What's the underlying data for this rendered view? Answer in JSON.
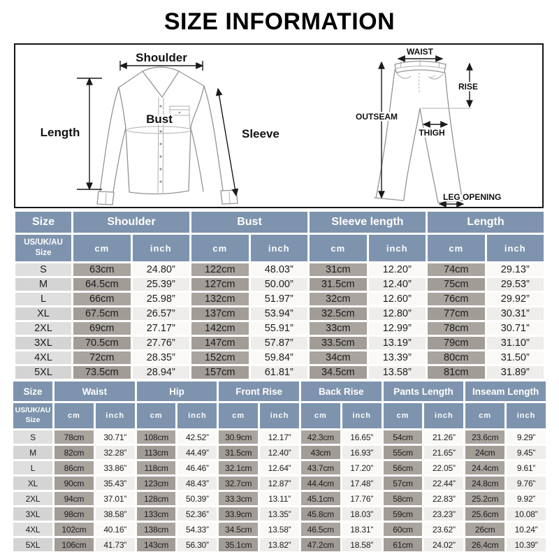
{
  "title": "SIZE INFORMATION",
  "colors": {
    "header_bg": "#7E93AD",
    "size_cell_bg": "#DFDFDF",
    "cm_cell_bg": "#A9A49E",
    "inch_cell_bg": "#FAF9F7",
    "title_color": "#000000"
  },
  "diagram": {
    "shirt": {
      "shoulder": "Shoulder",
      "length": "Length",
      "bust": "Bust",
      "sleeve": "Sleeve"
    },
    "pants": {
      "waist": "WAIST",
      "rise": "RISE",
      "outseam": "OUTSEAM",
      "thigh": "THIGH",
      "leg_opening": "LEG OPENING"
    }
  },
  "shirt_table": {
    "groups": [
      {
        "label": "Size",
        "span": 1
      },
      {
        "label": "Shoulder",
        "span": 2
      },
      {
        "label": "Bust",
        "span": 2
      },
      {
        "label": "Sleeve length",
        "span": 2
      },
      {
        "label": "Length",
        "span": 2
      }
    ],
    "corner": "US/UK/AU\nSize",
    "units": [
      "cm",
      "inch",
      "cm",
      "inch",
      "cm",
      "inch",
      "cm",
      "inch"
    ],
    "rows": [
      {
        "size": "S",
        "cells": [
          "63cm",
          "24.80”",
          "122cm",
          "48.03”",
          "31cm",
          "12.20”",
          "74cm",
          "29.13”"
        ]
      },
      {
        "size": "M",
        "cells": [
          "64.5cm",
          "25.39”",
          "127cm",
          "50.00”",
          "31.5cm",
          "12.40”",
          "75cm",
          "29.53”"
        ]
      },
      {
        "size": "L",
        "cells": [
          "66cm",
          "25.98”",
          "132cm",
          "51.97”",
          "32cm",
          "12.60”",
          "76cm",
          "29.92”"
        ]
      },
      {
        "size": "XL",
        "cells": [
          "67.5cm",
          "26.57”",
          "137cm",
          "53.94”",
          "32.5cm",
          "12.80”",
          "77cm",
          "30.31”"
        ]
      },
      {
        "size": "2XL",
        "cells": [
          "69cm",
          "27.17”",
          "142cm",
          "55.91”",
          "33cm",
          "12.99”",
          "78cm",
          "30.71”"
        ]
      },
      {
        "size": "3XL",
        "cells": [
          "70.5cm",
          "27.76”",
          "147cm",
          "57.87”",
          "33.5cm",
          "13.19”",
          "79cm",
          "31.10”"
        ]
      },
      {
        "size": "4XL",
        "cells": [
          "72cm",
          "28.35”",
          "152cm",
          "59.84”",
          "34cm",
          "13.39”",
          "80cm",
          "31.50”"
        ]
      },
      {
        "size": "5XL",
        "cells": [
          "73.5cm",
          "28.94”",
          "157cm",
          "61.81”",
          "34.5cm",
          "13.58”",
          "81cm",
          "31.89”"
        ]
      }
    ]
  },
  "pants_table": {
    "groups": [
      {
        "label": "Size",
        "span": 1
      },
      {
        "label": "Waist",
        "span": 2
      },
      {
        "label": "Hip",
        "span": 2
      },
      {
        "label": "Front Rise",
        "span": 2
      },
      {
        "label": "Back Rise",
        "span": 2
      },
      {
        "label": "Pants Length",
        "span": 2
      },
      {
        "label": "Inseam Length",
        "span": 2
      }
    ],
    "corner": "US/UK/AU\nSize",
    "units": [
      "cm",
      "inch",
      "cm",
      "inch",
      "cm",
      "inch",
      "cm",
      "inch",
      "cm",
      "inch",
      "cm",
      "inch"
    ],
    "rows": [
      {
        "size": "S",
        "cells": [
          "78cm",
          "30.71”",
          "108cm",
          "42.52”",
          "30.9cm",
          "12.17”",
          "42.3cm",
          "16.65”",
          "54cm",
          "21.26”",
          "23.6cm",
          "9.29”"
        ]
      },
      {
        "size": "M",
        "cells": [
          "82cm",
          "32.28”",
          "113cm",
          "44.49”",
          "31.5cm",
          "12.40”",
          "43cm",
          "16.93”",
          "55cm",
          "21.65”",
          "24cm",
          "9.45”"
        ]
      },
      {
        "size": "L",
        "cells": [
          "86cm",
          "33.86”",
          "118cm",
          "46.46”",
          "32.1cm",
          "12.64”",
          "43.7cm",
          "17.20”",
          "56cm",
          "22.05”",
          "24.4cm",
          "9.61”"
        ]
      },
      {
        "size": "XL",
        "cells": [
          "90cm",
          "35.43”",
          "123cm",
          "48.43”",
          "32.7cm",
          "12.87”",
          "44.4cm",
          "17.48”",
          "57cm",
          "22.44”",
          "24.8cm",
          "9.76”"
        ]
      },
      {
        "size": "2XL",
        "cells": [
          "94cm",
          "37.01”",
          "128cm",
          "50.39”",
          "33.3cm",
          "13.11”",
          "45.1cm",
          "17.76”",
          "58cm",
          "22.83”",
          "25.2cm",
          "9.92”"
        ]
      },
      {
        "size": "3XL",
        "cells": [
          "98cm",
          "38.58”",
          "133cm",
          "52.36”",
          "33.9cm",
          "13.35”",
          "45.8cm",
          "18.03”",
          "59cm",
          "23.23”",
          "25.6cm",
          "10.08”"
        ]
      },
      {
        "size": "4XL",
        "cells": [
          "102cm",
          "40.16”",
          "138cm",
          "54.33”",
          "34.5cm",
          "13.58”",
          "46.5cm",
          "18.31”",
          "60cm",
          "23.62”",
          "26cm",
          "10.24”"
        ]
      },
      {
        "size": "5XL",
        "cells": [
          "106cm",
          "41.73”",
          "143cm",
          "56.30”",
          "35.1cm",
          "13.82”",
          "47.2cm",
          "18.58”",
          "61cm",
          "24.02”",
          "26.4cm",
          "10.39”"
        ]
      }
    ]
  }
}
